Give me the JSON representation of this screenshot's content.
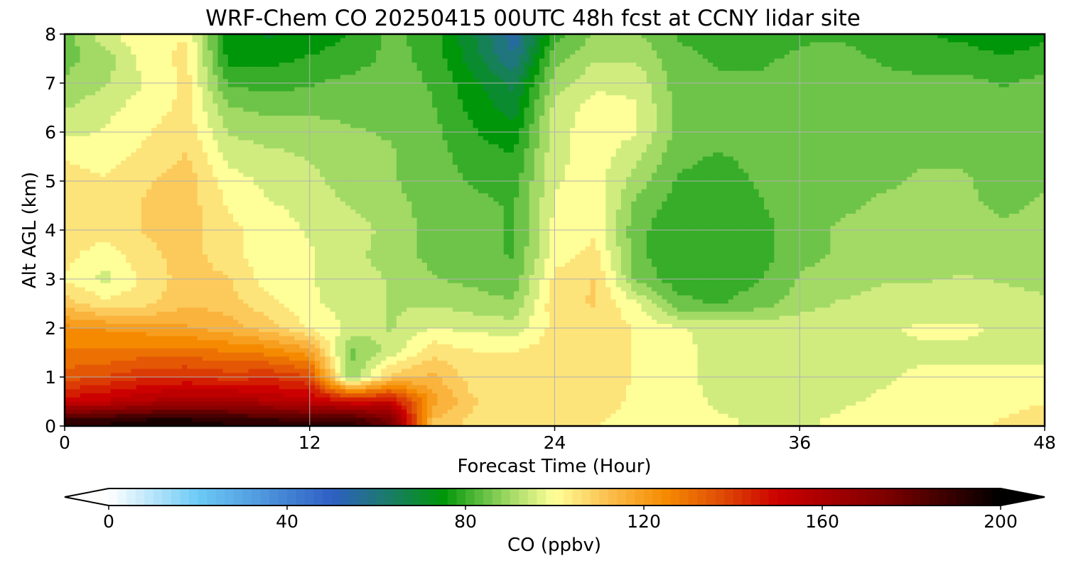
{
  "chart_data": {
    "type": "heatmap",
    "title": "WRF-Chem CO  20250415 00UTC 48h fcst at CCNY lidar site",
    "xlabel": "Forecast Time (Hour)",
    "ylabel": "Alt AGL (km)",
    "xlim": [
      0,
      48
    ],
    "ylim": [
      0,
      8
    ],
    "xticks": [
      "0",
      "12",
      "24",
      "36",
      "48"
    ],
    "yticks": [
      "0",
      "1",
      "2",
      "3",
      "4",
      "5",
      "6",
      "7",
      "8"
    ],
    "grid": true,
    "x": [
      0,
      2,
      4,
      6,
      8,
      10,
      12,
      14,
      16,
      18,
      20,
      22,
      24,
      26,
      28,
      30,
      32,
      34,
      36,
      38,
      40,
      42,
      44,
      46,
      48
    ],
    "y": [
      0.1,
      0.5,
      1.0,
      1.5,
      2.0,
      2.5,
      3.0,
      3.5,
      4.0,
      4.5,
      5.0,
      5.5,
      6.0,
      6.5,
      7.0,
      7.5,
      8.0
    ],
    "z": [
      [
        190,
        192,
        195,
        195,
        192,
        190,
        188,
        190,
        175,
        112,
        106,
        103,
        103,
        103,
        100,
        98,
        98,
        97,
        97,
        98,
        99,
        100,
        101,
        103,
        106
      ],
      [
        150,
        153,
        158,
        162,
        162,
        158,
        154,
        148,
        150,
        120,
        108,
        105,
        106,
        106,
        101,
        99,
        97,
        96,
        96,
        97,
        98,
        99,
        100,
        100,
        102
      ],
      [
        135,
        138,
        142,
        143,
        140,
        142,
        138,
        88,
        110,
        114,
        105,
        104,
        106,
        106,
        102,
        99,
        96,
        94,
        95,
        96,
        97,
        98,
        98,
        98,
        98
      ],
      [
        128,
        128,
        130,
        130,
        128,
        126,
        120,
        86,
        95,
        106,
        103,
        103,
        105,
        106,
        102,
        99,
        96,
        95,
        96,
        97,
        97,
        97,
        97,
        97,
        97
      ],
      [
        124,
        122,
        120,
        118,
        115,
        110,
        102,
        96,
        92,
        98,
        96,
        95,
        104,
        106,
        102,
        98,
        96,
        96,
        96,
        97,
        97,
        98,
        98,
        97,
        96
      ],
      [
        110,
        104,
        106,
        112,
        110,
        104,
        98,
        96,
        92,
        92,
        90,
        88,
        106,
        108,
        98,
        84,
        82,
        85,
        90,
        93,
        94,
        95,
        96,
        95,
        94
      ],
      [
        102,
        96,
        104,
        110,
        108,
        100,
        98,
        95,
        92,
        88,
        86,
        84,
        104,
        108,
        86,
        80,
        80,
        82,
        88,
        90,
        92,
        92,
        93,
        92,
        90
      ],
      [
        104,
        100,
        106,
        110,
        104,
        100,
        98,
        94,
        90,
        86,
        84,
        82,
        100,
        104,
        84,
        78,
        78,
        80,
        86,
        88,
        89,
        90,
        90,
        89,
        88
      ],
      [
        106,
        104,
        108,
        110,
        104,
        100,
        97,
        96,
        90,
        86,
        84,
        82,
        99,
        102,
        84,
        79,
        78,
        80,
        86,
        88,
        88,
        89,
        89,
        88,
        88
      ],
      [
        106,
        104,
        108,
        110,
        102,
        98,
        96,
        92,
        89,
        86,
        84,
        82,
        98,
        101,
        86,
        80,
        79,
        82,
        86,
        87,
        88,
        88,
        88,
        87,
        88
      ],
      [
        105,
        103,
        107,
        110,
        100,
        96,
        94,
        90,
        88,
        85,
        82,
        80,
        97,
        100,
        90,
        82,
        80,
        83,
        86,
        86,
        87,
        88,
        88,
        86,
        87
      ],
      [
        102,
        100,
        104,
        108,
        96,
        94,
        92,
        90,
        88,
        85,
        80,
        78,
        96,
        100,
        94,
        84,
        82,
        84,
        86,
        86,
        86,
        87,
        87,
        86,
        86
      ],
      [
        96,
        98,
        102,
        106,
        92,
        90,
        90,
        88,
        87,
        84,
        78,
        74,
        96,
        100,
        98,
        86,
        84,
        85,
        86,
        86,
        86,
        86,
        86,
        86,
        86
      ],
      [
        92,
        96,
        100,
        104,
        88,
        86,
        86,
        86,
        86,
        83,
        76,
        70,
        94,
        100,
        98,
        86,
        84,
        84,
        85,
        86,
        86,
        86,
        85,
        85,
        86
      ],
      [
        88,
        92,
        98,
        104,
        82,
        80,
        82,
        84,
        85,
        82,
        74,
        66,
        90,
        96,
        96,
        85,
        83,
        83,
        84,
        85,
        84,
        84,
        84,
        82,
        84
      ],
      [
        86,
        90,
        100,
        104,
        76,
        76,
        78,
        80,
        84,
        81,
        70,
        58,
        86,
        92,
        92,
        84,
        82,
        82,
        83,
        84,
        82,
        80,
        80,
        78,
        80
      ],
      [
        84,
        96,
        102,
        102,
        74,
        72,
        74,
        78,
        84,
        80,
        68,
        54,
        80,
        88,
        88,
        82,
        80,
        80,
        82,
        82,
        80,
        78,
        76,
        74,
        76
      ]
    ],
    "colorbar": {
      "label": "CO  (ppbv)",
      "min": 0,
      "max": 200,
      "ticks": [
        "0",
        "40",
        "80",
        "120",
        "160",
        "200"
      ],
      "extend": "both",
      "stops": [
        {
          "value": 0,
          "color": "#ffffff"
        },
        {
          "value": 20,
          "color": "#6ccaf5"
        },
        {
          "value": 50,
          "color": "#2f5fc4"
        },
        {
          "value": 62,
          "color": "#1c7a6e"
        },
        {
          "value": 75,
          "color": "#00960a"
        },
        {
          "value": 88,
          "color": "#8fd25a"
        },
        {
          "value": 100,
          "color": "#ffff99"
        },
        {
          "value": 112,
          "color": "#fbbf4e"
        },
        {
          "value": 125,
          "color": "#f58a00"
        },
        {
          "value": 137,
          "color": "#e04e06"
        },
        {
          "value": 150,
          "color": "#cc0000"
        },
        {
          "value": 175,
          "color": "#7a0000"
        },
        {
          "value": 200,
          "color": "#000000"
        }
      ]
    }
  }
}
